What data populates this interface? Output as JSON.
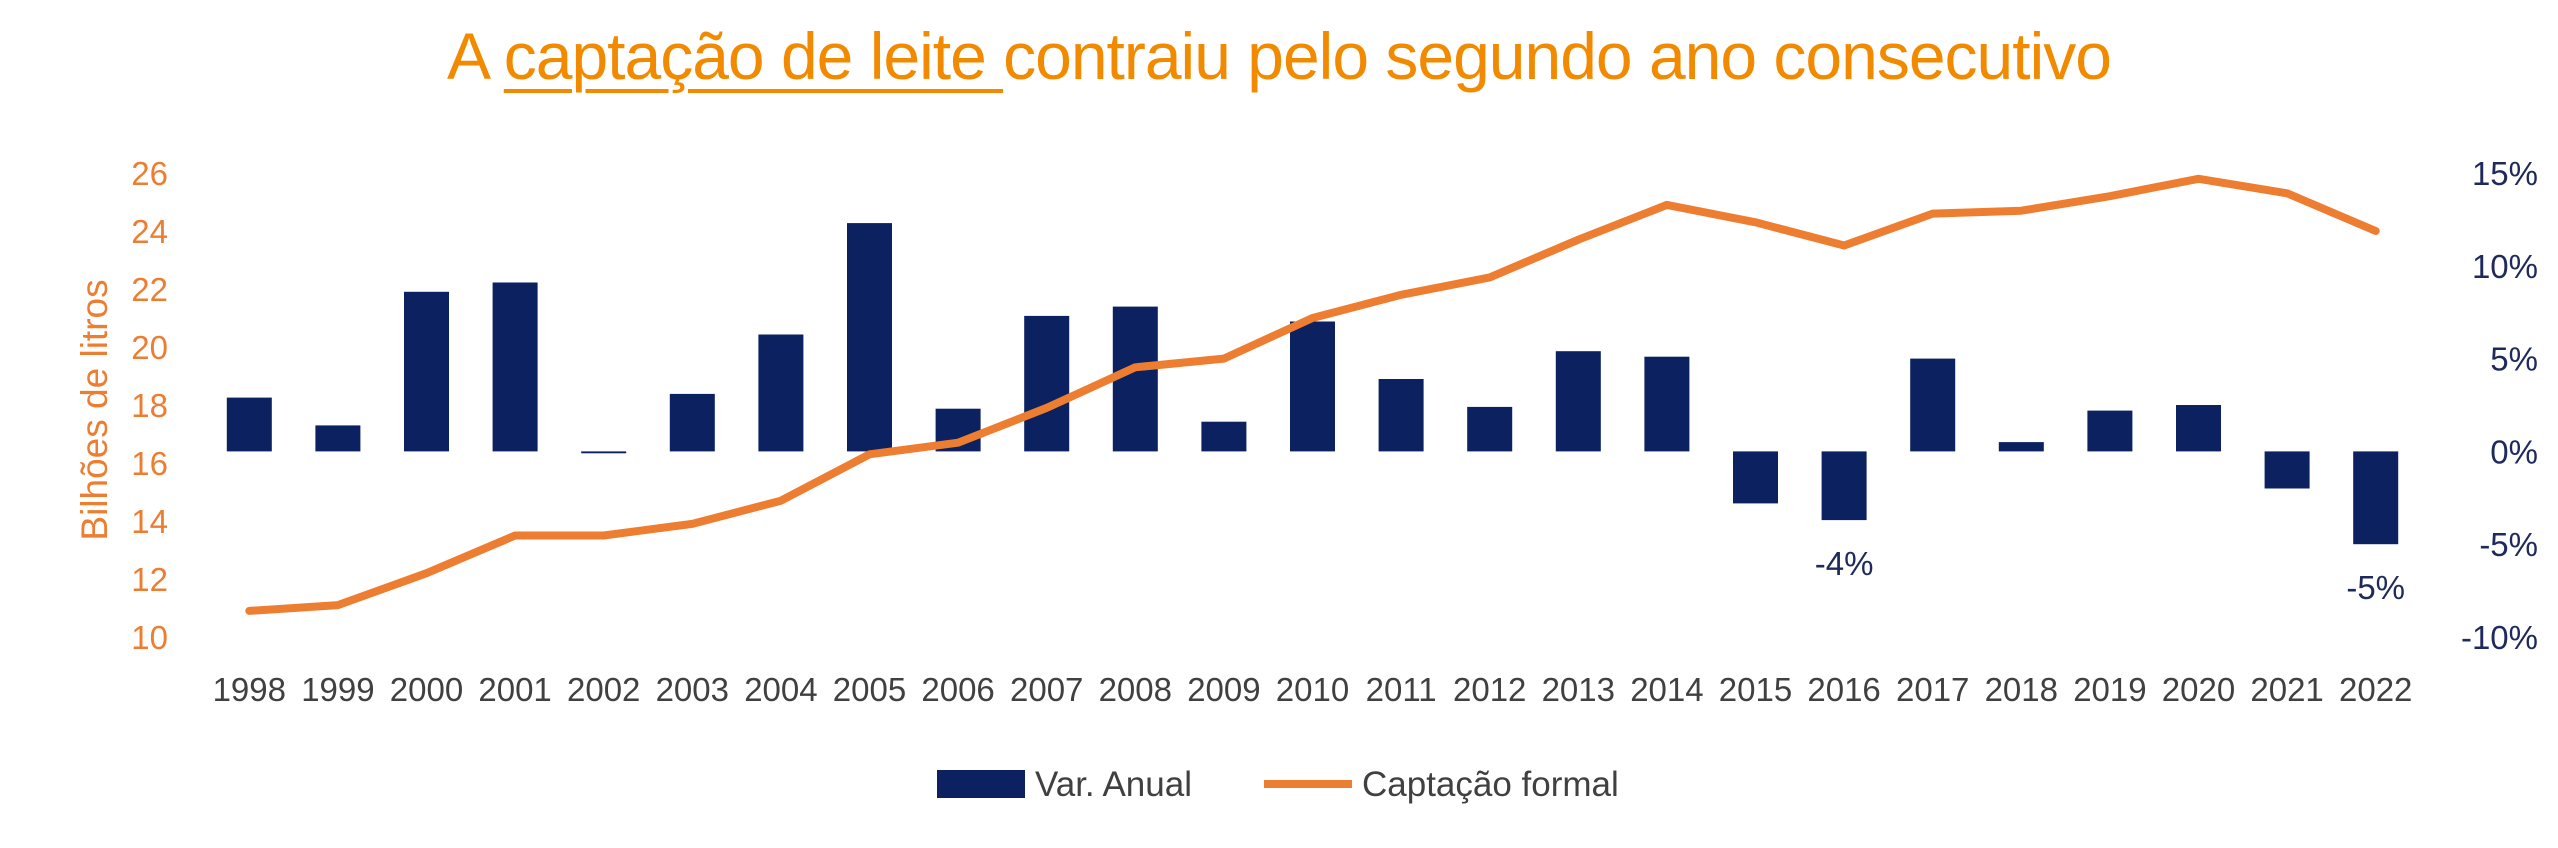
{
  "title": {
    "before": "A ",
    "underlined": "captação de leite ",
    "after": "contraiu pelo segundo ano consecutivo"
  },
  "colors": {
    "title": "#f28a00",
    "bars": "#0b2160",
    "line": "#ed7d31",
    "left_axis": "#ed7d31",
    "right_axis": "#1f2a5c"
  },
  "chart_data": {
    "type": "bar+line",
    "categories": [
      "1998",
      "1999",
      "2000",
      "2001",
      "2002",
      "2003",
      "2004",
      "2005",
      "2006",
      "2007",
      "2008",
      "2009",
      "2010",
      "2011",
      "2012",
      "2013",
      "2014",
      "2015",
      "2016",
      "2017",
      "2018",
      "2019",
      "2020",
      "2021",
      "2022"
    ],
    "series": [
      {
        "name": "Var. Anual",
        "type": "bar",
        "axis": "right",
        "values": [
          2.9,
          1.4,
          8.6,
          9.1,
          -0.1,
          3.1,
          6.3,
          12.3,
          2.3,
          7.3,
          7.8,
          1.6,
          7.0,
          3.9,
          2.4,
          5.4,
          5.1,
          -2.8,
          -3.7,
          5.0,
          0.5,
          2.2,
          2.5,
          -2.0,
          -5.0
        ]
      },
      {
        "name": "Captação formal",
        "type": "line",
        "axis": "left",
        "values": [
          10.9,
          11.1,
          12.2,
          13.5,
          13.5,
          13.9,
          14.7,
          16.3,
          16.7,
          17.9,
          19.3,
          19.6,
          21.0,
          21.8,
          22.4,
          23.7,
          24.9,
          24.3,
          23.5,
          24.6,
          24.7,
          25.2,
          25.8,
          25.3,
          24.0
        ]
      }
    ],
    "left_axis": {
      "label": "Bilhões de litros",
      "min": 10,
      "max": 26,
      "ticks": [
        "10",
        "12",
        "14",
        "16",
        "18",
        "20",
        "22",
        "24",
        "26"
      ]
    },
    "right_axis": {
      "min": -10,
      "max": 15,
      "ticks": [
        "-10%",
        "-5%",
        "0%",
        "5%",
        "10%",
        "15%"
      ]
    },
    "annotations": [
      {
        "category": "2016",
        "text": "-4%"
      },
      {
        "category": "2022",
        "text": "-5%"
      }
    ],
    "legend": {
      "position": "bottom",
      "items": [
        "Var. Anual",
        "Captação formal"
      ]
    },
    "grid": false
  }
}
